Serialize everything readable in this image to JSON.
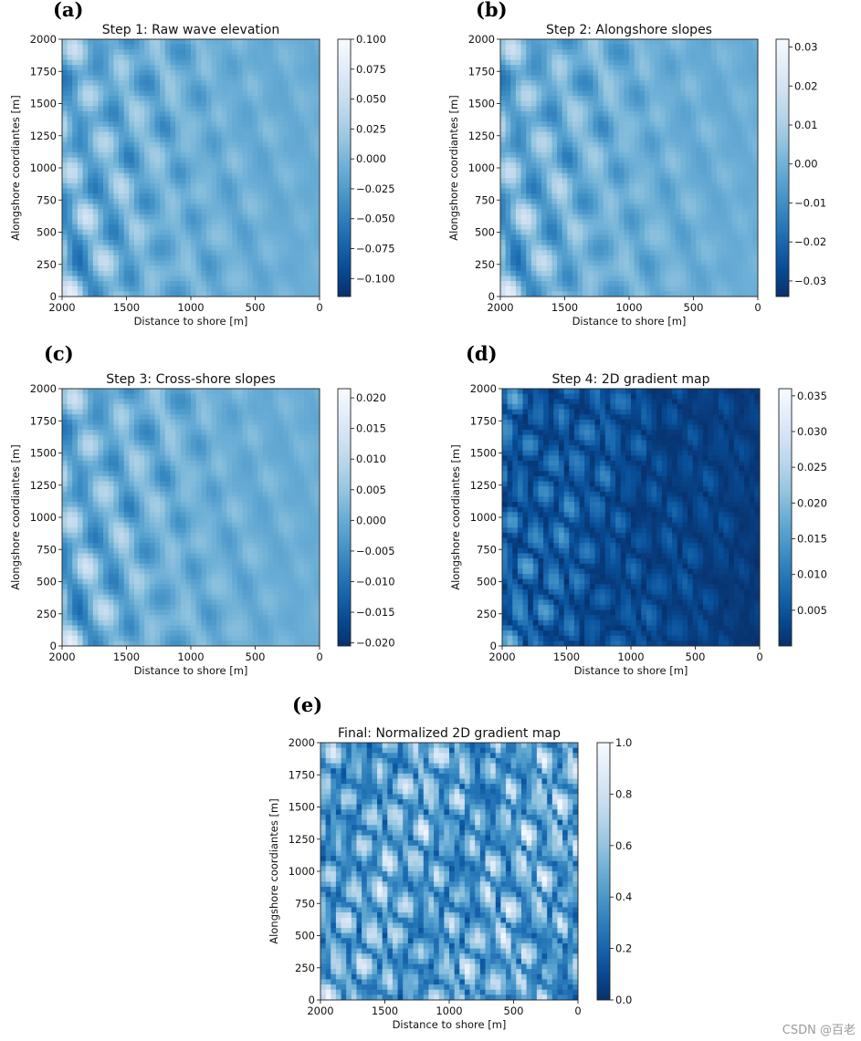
{
  "figure": {
    "watermark": "CSDN @百老"
  },
  "chart_data": [
    {
      "type": "heatmap",
      "panel_letter": "(a)",
      "title": "Step 1: Raw wave elevation",
      "xlabel": "Distance to shore [m]",
      "ylabel": "Alongshore coordiantes [m]",
      "xlim": [
        2000,
        0
      ],
      "ylim": [
        0,
        2000
      ],
      "xticks": [
        "2000",
        "1500",
        "1000",
        "500",
        "0"
      ],
      "yticks": [
        "0",
        "250",
        "500",
        "750",
        "1000",
        "1250",
        "1500",
        "1750",
        "2000"
      ],
      "colormap": "Blues_r",
      "colorbar": {
        "range": [
          -0.115,
          0.1
        ],
        "ticks": [
          0.1,
          0.075,
          0.05,
          0.025,
          0.0,
          -0.025,
          -0.05,
          -0.075,
          -0.1
        ],
        "tick_labels": [
          "0.100",
          "0.075",
          "0.050",
          "0.025",
          "0.000",
          "−0.025",
          "−0.050",
          "−0.075",
          "−0.100"
        ]
      },
      "pattern": "signed"
    },
    {
      "type": "heatmap",
      "panel_letter": "(b)",
      "title": "Step 2: Alongshore slopes",
      "xlabel": "Distance to shore [m]",
      "ylabel": "Alongshore coordiantes [m]",
      "xlim": [
        2000,
        0
      ],
      "ylim": [
        0,
        2000
      ],
      "xticks": [
        "2000",
        "1500",
        "1000",
        "500",
        "0"
      ],
      "yticks": [
        "0",
        "250",
        "500",
        "750",
        "1000",
        "1250",
        "1500",
        "1750",
        "2000"
      ],
      "colormap": "Blues_r",
      "colorbar": {
        "range": [
          -0.034,
          0.032
        ],
        "ticks": [
          0.03,
          0.02,
          0.01,
          0.0,
          -0.01,
          -0.02,
          -0.03
        ],
        "tick_labels": [
          "0.03",
          "0.02",
          "0.01",
          "0.00",
          "−0.01",
          "−0.02",
          "−0.03"
        ]
      },
      "pattern": "signed"
    },
    {
      "type": "heatmap",
      "panel_letter": "(c)",
      "title": "Step 3: Cross-shore slopes",
      "xlabel": "Distance to shore [m]",
      "ylabel": "Alongshore coordiantes [m]",
      "xlim": [
        2000,
        0
      ],
      "ylim": [
        0,
        2000
      ],
      "xticks": [
        "2000",
        "1500",
        "1000",
        "500",
        "0"
      ],
      "yticks": [
        "0",
        "250",
        "500",
        "750",
        "1000",
        "1250",
        "1500",
        "1750",
        "2000"
      ],
      "colormap": "Blues_r",
      "colorbar": {
        "range": [
          -0.0205,
          0.0215
        ],
        "ticks": [
          0.02,
          0.015,
          0.01,
          0.005,
          0.0,
          -0.005,
          -0.01,
          -0.015,
          -0.02
        ],
        "tick_labels": [
          "0.020",
          "0.015",
          "0.010",
          "0.005",
          "0.000",
          "−0.005",
          "−0.010",
          "−0.015",
          "−0.020"
        ]
      },
      "pattern": "signed"
    },
    {
      "type": "heatmap",
      "panel_letter": "(d)",
      "title": "Step 4: 2D gradient map",
      "xlabel": "Distance to shore [m]",
      "ylabel": "Alongshore coordiantes [m]",
      "xlim": [
        2000,
        0
      ],
      "ylim": [
        0,
        2000
      ],
      "xticks": [
        "2000",
        "1500",
        "1000",
        "500",
        "0"
      ],
      "yticks": [
        "0",
        "250",
        "500",
        "750",
        "1000",
        "1250",
        "1500",
        "1750",
        "2000"
      ],
      "colormap": "Blues_r",
      "colorbar": {
        "range": [
          0.0,
          0.036
        ],
        "ticks": [
          0.035,
          0.03,
          0.025,
          0.02,
          0.015,
          0.01,
          0.005
        ],
        "tick_labels": [
          "0.035",
          "0.030",
          "0.025",
          "0.020",
          "0.015",
          "0.010",
          "0.005"
        ]
      },
      "pattern": "magnitude"
    },
    {
      "type": "heatmap",
      "panel_letter": "(e)",
      "title": "Final: Normalized 2D gradient map",
      "xlabel": "Distance to shore [m]",
      "ylabel": "Alongshore coordiantes [m]",
      "xlim": [
        2000,
        0
      ],
      "ylim": [
        0,
        2000
      ],
      "xticks": [
        "2000",
        "1500",
        "1000",
        "500",
        "0"
      ],
      "yticks": [
        "0",
        "250",
        "500",
        "750",
        "1000",
        "1250",
        "1500",
        "1750",
        "2000"
      ],
      "colormap": "Blues_r",
      "colorbar": {
        "range": [
          0.0,
          1.0
        ],
        "ticks": [
          1.0,
          0.8,
          0.6,
          0.4,
          0.2,
          0.0
        ],
        "tick_labels": [
          "1.0",
          "0.8",
          "0.6",
          "0.4",
          "0.2",
          "0.0"
        ]
      },
      "pattern": "normalized"
    }
  ]
}
